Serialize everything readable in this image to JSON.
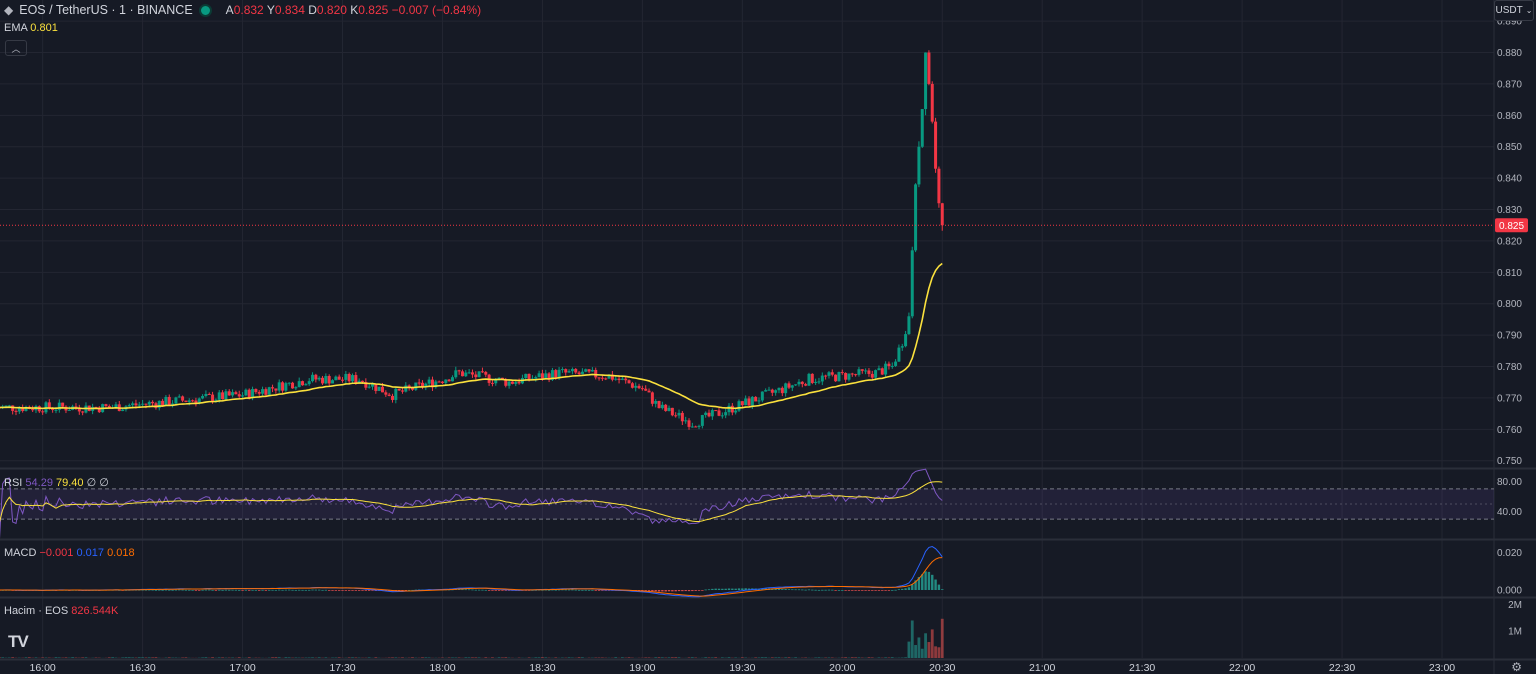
{
  "header": {
    "title": "EOS / TetherUS · 1 · BINANCE",
    "ohlc": [
      {
        "k": "A",
        "v": "0.832"
      },
      {
        "k": "Y",
        "v": "0.834"
      },
      {
        "k": "D",
        "v": "0.820"
      },
      {
        "k": "K",
        "v": "0.825"
      }
    ],
    "change": "−0.007 (−0.84%)",
    "currency": "USDT"
  },
  "indicators": {
    "ema": {
      "name": "EMA",
      "value": "0.801"
    },
    "rsi": {
      "name": "RSI",
      "v1": "54.29",
      "v2": "79.40",
      "v3": "∅",
      "v4": "∅"
    },
    "macd": {
      "name": "MACD",
      "v1": "−0.001",
      "v2": "0.017",
      "v3": "0.018"
    },
    "volume": {
      "name": "Hacim · EOS",
      "value": "826.544K"
    }
  },
  "colors": {
    "up": "#089981",
    "down": "#f23645",
    "ema": "#fbe13d",
    "rsi": "#7e57c2",
    "macd": "#2962ff",
    "signal": "#ff6d00",
    "bg": "#161a25"
  },
  "chart_data": {
    "type": "candlestick",
    "time_ticks": [
      "16:00",
      "16:30",
      "17:00",
      "17:30",
      "18:00",
      "18:30",
      "19:00",
      "19:30",
      "20:00",
      "20:30",
      "21:00",
      "21:30",
      "22:00",
      "22:30",
      "23:00"
    ],
    "price_ticks": [
      "0.890",
      "0.880",
      "0.870",
      "0.860",
      "0.850",
      "0.840",
      "0.830",
      "0.820",
      "0.810",
      "0.800",
      "0.790",
      "0.780",
      "0.770",
      "0.760",
      "0.750"
    ],
    "last_price": "0.825",
    "price_range": [
      0.748,
      0.891
    ],
    "rsi_ticks": [
      "80.00",
      "40.00"
    ],
    "rsi_bands": [
      70,
      30
    ],
    "macd_ticks": [
      "0.020",
      "0.000"
    ],
    "volume_ticks": [
      "2M",
      "1M"
    ],
    "time_range": [
      "15:46",
      "23:15"
    ],
    "close_anchors": [
      {
        "t": "15:46",
        "p": 0.767
      },
      {
        "t": "16:20",
        "p": 0.767
      },
      {
        "t": "16:40",
        "p": 0.769
      },
      {
        "t": "17:00",
        "p": 0.771
      },
      {
        "t": "17:20",
        "p": 0.776
      },
      {
        "t": "17:35",
        "p": 0.776
      },
      {
        "t": "17:45",
        "p": 0.771
      },
      {
        "t": "18:00",
        "p": 0.776
      },
      {
        "t": "18:05",
        "p": 0.778
      },
      {
        "t": "18:20",
        "p": 0.775
      },
      {
        "t": "18:35",
        "p": 0.778
      },
      {
        "t": "18:50",
        "p": 0.777
      },
      {
        "t": "19:00",
        "p": 0.773
      },
      {
        "t": "19:05",
        "p": 0.767
      },
      {
        "t": "19:15",
        "p": 0.762
      },
      {
        "t": "19:25",
        "p": 0.766
      },
      {
        "t": "19:35",
        "p": 0.77
      },
      {
        "t": "19:50",
        "p": 0.776
      },
      {
        "t": "20:10",
        "p": 0.778
      },
      {
        "t": "20:15",
        "p": 0.78
      },
      {
        "t": "20:18",
        "p": 0.788
      },
      {
        "t": "20:20",
        "p": 0.796
      },
      {
        "t": "20:22",
        "p": 0.838
      },
      {
        "t": "20:24",
        "p": 0.862
      },
      {
        "t": "20:25",
        "p": 0.88
      },
      {
        "t": "20:26",
        "p": 0.87
      },
      {
        "t": "20:27",
        "p": 0.858
      },
      {
        "t": "20:28",
        "p": 0.843
      },
      {
        "t": "20:29",
        "p": 0.832
      },
      {
        "t": "20:30",
        "p": 0.825
      }
    ]
  }
}
